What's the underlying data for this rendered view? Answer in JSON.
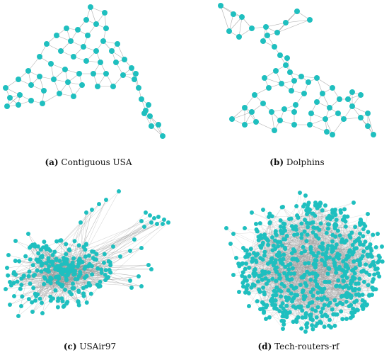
{
  "node_color": "#1fbfbf",
  "edge_color": "#9a9a9a",
  "panels": [
    {
      "label": "(a)",
      "caption": "Contiguous USA"
    },
    {
      "label": "(b)",
      "caption": "Dolphins"
    },
    {
      "label": "(c)",
      "caption": "USAir97"
    },
    {
      "label": "(d)",
      "caption": "Tech-routers-rf"
    }
  ]
}
